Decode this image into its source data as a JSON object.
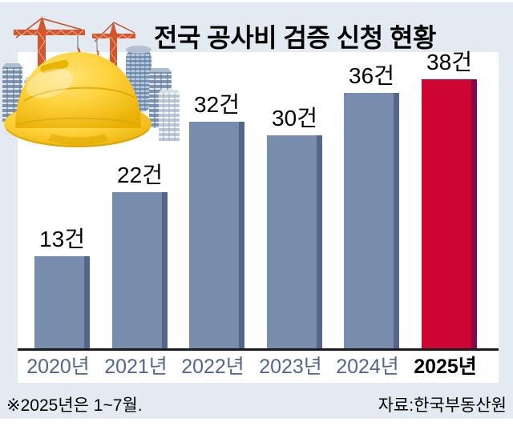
{
  "title": "전국 공사비 검증 신청 현황",
  "footnote": "※2025년은 1~7월.",
  "source": "자료:한국부동산원",
  "chart_data": {
    "type": "bar",
    "categories": [
      "2020년",
      "2021년",
      "2022년",
      "2023년",
      "2024년",
      "2025년"
    ],
    "values": [
      13,
      22,
      32,
      30,
      36,
      38
    ],
    "labels": [
      "13건",
      "22건",
      "32건",
      "30건",
      "36건",
      "38건"
    ],
    "title": "전국 공사비 검증 신청 현황",
    "xlabel": "",
    "ylabel": "",
    "ylim": [
      0,
      42
    ],
    "grid": false,
    "legend": "none",
    "highlight_index": 5,
    "note": "2025년은 1~7월 집계",
    "unit": "건"
  },
  "colors": {
    "panel_bg": "#e3eaf2",
    "plot_bg": "#ffffff",
    "bar_fill": "#788dae",
    "bar_edge": "#54668b",
    "highlight_fill": "#ce0433",
    "highlight_edge": "#85094a",
    "axis_line": "#1b1b1b",
    "axis_label": "#52678c",
    "highlight_axis_label": "#000000",
    "value_label": "#000000",
    "crane_orange": "#d4552a",
    "helmet_yellow": "#fdd23c",
    "building_blue": "#7e95b2"
  },
  "icons": {
    "illustration": "construction-helmet-cranes-buildings-illustration"
  }
}
